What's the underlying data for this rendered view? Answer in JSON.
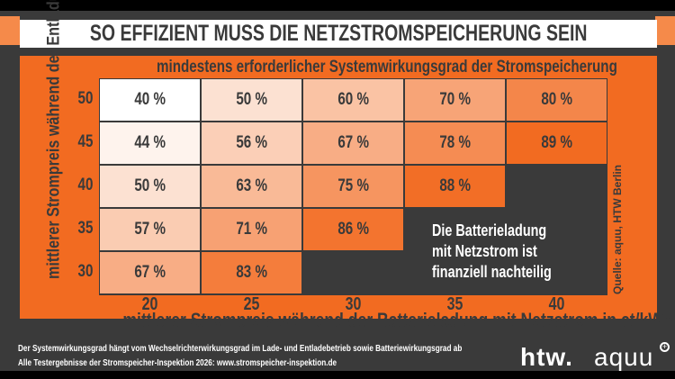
{
  "title": "SO EFFIZIENT MUSS DIE NETZSTROMSPEICHERUNG SEIN",
  "colors": {
    "orange": "#f26b21",
    "dark": "#3a3a3a",
    "white": "#ffffff"
  },
  "chart_data": {
    "type": "heatmap",
    "title": "mindestens erforderlicher Systemwirkungsgrad der Stromspeicherung",
    "xlabel": "mittlerer Strompreis während der Batterieladung mit Netzstrom in ct/kWh",
    "ylabel": "mittlerer Strompreis während der Entladung in ct/kWh",
    "x": [
      20,
      25,
      30,
      35,
      40
    ],
    "y": [
      50,
      45,
      40,
      35,
      30
    ],
    "values": [
      [
        40,
        50,
        60,
        70,
        80
      ],
      [
        44,
        56,
        67,
        78,
        89
      ],
      [
        50,
        63,
        75,
        88,
        null
      ],
      [
        57,
        71,
        86,
        null,
        null
      ],
      [
        67,
        83,
        null,
        null,
        null
      ]
    ],
    "unit": "%",
    "null_label": "Die Batterieladung mit Netzstrom ist finanziell nachteilig",
    "source": "Quelle: aquu, HTW Berlin"
  },
  "note_lines": [
    "Die Batterieladung",
    "mit Netzstrom ist",
    "finanziell nachteilig"
  ],
  "footer": {
    "line1": "Der Systemwirkungsgrad hängt vom Wechselrichterwirkungsgrad im Lade- und Entladebetrieb sowie Batteriewirkungsgrad ab",
    "line2": "Alle Testergebnisse der Stromspeicher-Inspektion 2026: www.stromspeicher-inspektion.de"
  },
  "logos": {
    "htw": "htw.",
    "aquu": "aquu"
  }
}
